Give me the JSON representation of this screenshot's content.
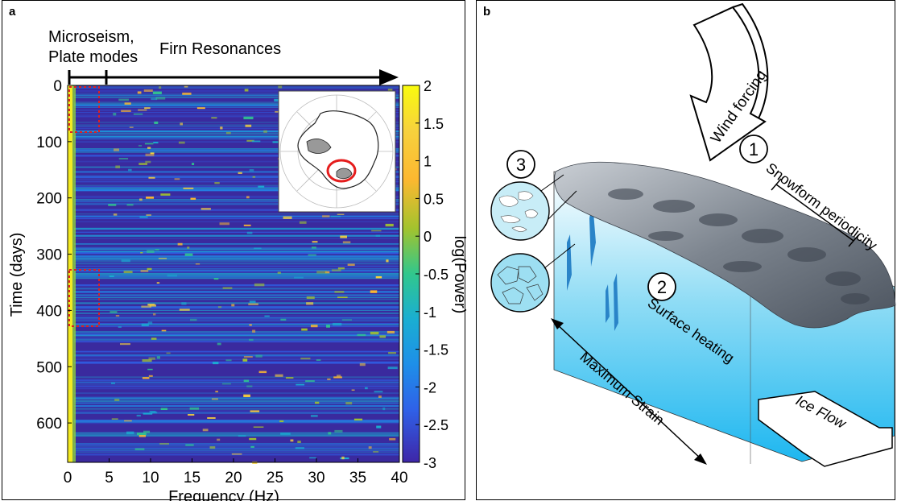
{
  "panel_a": {
    "label": "a",
    "annot_left": [
      "Microseism,",
      "Plate modes"
    ],
    "annot_right": "Firn Resonances",
    "chart_data": {
      "type": "heatmap",
      "xlabel": "Frequency (Hz)",
      "ylabel": "Time (days)",
      "xlim": [
        0,
        40
      ],
      "ylim": [
        0,
        670
      ],
      "x_ticks": [
        "0",
        "5",
        "10",
        "15",
        "20",
        "25",
        "30",
        "35",
        "40"
      ],
      "y_ticks": [
        "0",
        "100",
        "200",
        "300",
        "400",
        "500",
        "600"
      ],
      "colorbar": {
        "label": "log(Power)",
        "range": [
          -3,
          2
        ],
        "ticks": [
          "2",
          "1.5",
          "1",
          "0.5",
          "0",
          "-0.5",
          "-1",
          "-1.5",
          "-2",
          "-2.5",
          "-3"
        ]
      },
      "highlight_boxes": [
        {
          "x": [
            0,
            3.7
          ],
          "y": [
            0,
            85
          ]
        },
        {
          "x": [
            0,
            3.7
          ],
          "y": [
            325,
            430
          ]
        }
      ]
    }
  },
  "panel_b": {
    "label": "b",
    "wind": "Wind forcing",
    "n1": "1",
    "n2": "2",
    "n3": "3",
    "snowform": "Snowform periodicity",
    "heating": "Surface heating",
    "strain": "Maximum Strain",
    "iceflow": "Ice Flow"
  }
}
